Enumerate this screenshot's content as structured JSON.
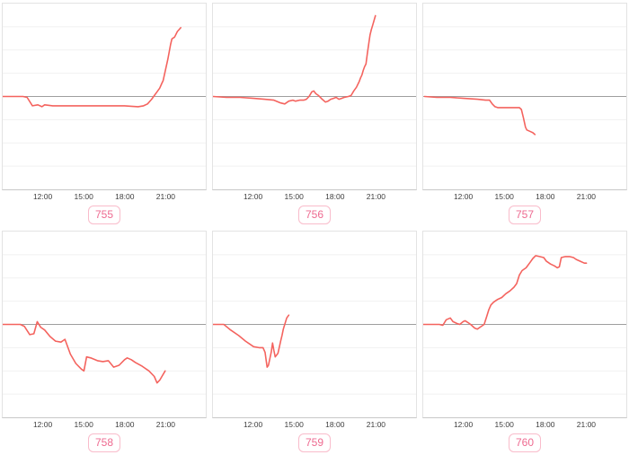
{
  "style": {
    "line_color": "#f4635e",
    "zero_line_color": "#9e9e9e",
    "grid_color": "#f1f1f1",
    "panel_border_color": "#e3e3e3",
    "axis_line_color": "#c8c8c8",
    "tick_label_color": "#3d3d3d",
    "badge_text_color": "#ee6a90",
    "badge_border_color": "#f9bccb"
  },
  "decor": {
    "clipped_title_fragment": "( , )"
  },
  "axis": {
    "grid_divisions": 8
  },
  "chart_data": [
    {
      "type": "line",
      "badge": "755",
      "x_tick_labels": [
        "12:00",
        "15:00",
        "18:00",
        "21:00"
      ],
      "x_tick_hours": [
        12,
        15,
        18,
        21
      ],
      "x_range_hours": [
        9,
        24
      ],
      "y_range": [
        -1,
        1
      ],
      "baseline": 0,
      "y_units": "relative change (y-axis unlabeled)",
      "points": [
        [
          9.0,
          0
        ],
        [
          10.5,
          0
        ],
        [
          10.8,
          -0.01
        ],
        [
          11.2,
          -0.1
        ],
        [
          11.6,
          -0.09
        ],
        [
          11.9,
          -0.11
        ],
        [
          12.1,
          -0.09
        ],
        [
          12.7,
          -0.1
        ],
        [
          14.0,
          -0.1
        ],
        [
          15.0,
          -0.1
        ],
        [
          16.0,
          -0.1
        ],
        [
          17.0,
          -0.1
        ],
        [
          18.0,
          -0.1
        ],
        [
          19.0,
          -0.11
        ],
        [
          19.4,
          -0.1
        ],
        [
          19.7,
          -0.08
        ],
        [
          20.0,
          -0.03
        ],
        [
          20.2,
          0.01
        ],
        [
          20.4,
          0.05
        ],
        [
          20.6,
          0.09
        ],
        [
          20.75,
          0.14
        ],
        [
          20.85,
          0.17
        ],
        [
          21.0,
          0.27
        ],
        [
          21.2,
          0.4
        ],
        [
          21.4,
          0.56
        ],
        [
          21.5,
          0.62
        ],
        [
          21.7,
          0.64
        ],
        [
          21.9,
          0.7
        ],
        [
          22.15,
          0.74
        ]
      ]
    },
    {
      "type": "line",
      "badge": "756",
      "x_tick_labels": [
        "12:00",
        "15:00",
        "18:00",
        "21:00"
      ],
      "x_tick_hours": [
        12,
        15,
        18,
        21
      ],
      "x_range_hours": [
        9,
        24
      ],
      "y_range": [
        -1,
        1
      ],
      "baseline": 0,
      "y_units": "relative change (y-axis unlabeled)",
      "points": [
        [
          9.0,
          0
        ],
        [
          10.0,
          -0.01
        ],
        [
          11.0,
          -0.01
        ],
        [
          12.0,
          -0.02
        ],
        [
          12.8,
          -0.03
        ],
        [
          13.5,
          -0.04
        ],
        [
          14.0,
          -0.07
        ],
        [
          14.3,
          -0.08
        ],
        [
          14.6,
          -0.05
        ],
        [
          14.9,
          -0.04
        ],
        [
          15.1,
          -0.05
        ],
        [
          15.4,
          -0.04
        ],
        [
          15.7,
          -0.04
        ],
        [
          15.9,
          -0.03
        ],
        [
          16.1,
          0
        ],
        [
          16.3,
          0.05
        ],
        [
          16.45,
          0.06
        ],
        [
          16.6,
          0.03
        ],
        [
          16.8,
          0.01
        ],
        [
          17.0,
          -0.02
        ],
        [
          17.3,
          -0.06
        ],
        [
          17.5,
          -0.05
        ],
        [
          17.7,
          -0.03
        ],
        [
          17.9,
          -0.02
        ],
        [
          18.1,
          -0.01
        ],
        [
          18.3,
          -0.03
        ],
        [
          18.5,
          -0.02
        ],
        [
          18.7,
          -0.01
        ],
        [
          19.0,
          0
        ],
        [
          19.2,
          0.01
        ],
        [
          19.4,
          0.06
        ],
        [
          19.6,
          0.1
        ],
        [
          19.8,
          0.16
        ],
        [
          19.9,
          0.2
        ],
        [
          20.0,
          0.23
        ],
        [
          20.1,
          0.28
        ],
        [
          20.2,
          0.32
        ],
        [
          20.3,
          0.35
        ],
        [
          20.4,
          0.46
        ],
        [
          20.5,
          0.56
        ],
        [
          20.6,
          0.66
        ],
        [
          20.7,
          0.72
        ],
        [
          20.8,
          0.77
        ],
        [
          20.9,
          0.82
        ],
        [
          21.0,
          0.87
        ]
      ]
    },
    {
      "type": "line",
      "badge": "757",
      "x_tick_labels": [
        "12:00",
        "15:00",
        "18:00",
        "21:00"
      ],
      "x_tick_hours": [
        12,
        15,
        18,
        21
      ],
      "x_range_hours": [
        9,
        24
      ],
      "y_range": [
        -1,
        1
      ],
      "baseline": 0,
      "y_units": "relative change (y-axis unlabeled)",
      "points": [
        [
          9.1,
          0
        ],
        [
          10.0,
          -0.01
        ],
        [
          11.0,
          -0.01
        ],
        [
          12.0,
          -0.02
        ],
        [
          13.0,
          -0.03
        ],
        [
          13.6,
          -0.04
        ],
        [
          13.9,
          -0.04
        ],
        [
          14.1,
          -0.08
        ],
        [
          14.3,
          -0.11
        ],
        [
          14.5,
          -0.12
        ],
        [
          15.0,
          -0.12
        ],
        [
          15.5,
          -0.12
        ],
        [
          15.9,
          -0.12
        ],
        [
          16.1,
          -0.12
        ],
        [
          16.25,
          -0.14
        ],
        [
          16.4,
          -0.23
        ],
        [
          16.55,
          -0.33
        ],
        [
          16.65,
          -0.36
        ],
        [
          16.8,
          -0.37
        ],
        [
          16.95,
          -0.38
        ],
        [
          17.1,
          -0.39
        ],
        [
          17.25,
          -0.41
        ]
      ]
    },
    {
      "type": "line",
      "badge": "758",
      "x_tick_labels": [
        "12:00",
        "15:00",
        "18:00",
        "21:00"
      ],
      "x_tick_hours": [
        12,
        15,
        18,
        21
      ],
      "x_range_hours": [
        9,
        24
      ],
      "y_range": [
        -1,
        1
      ],
      "baseline": 0,
      "y_units": "relative change (y-axis unlabeled)",
      "points": [
        [
          9.0,
          0
        ],
        [
          10.3,
          0
        ],
        [
          10.6,
          -0.02
        ],
        [
          11.0,
          -0.11
        ],
        [
          11.3,
          -0.1
        ],
        [
          11.55,
          0.03
        ],
        [
          11.8,
          -0.03
        ],
        [
          12.1,
          -0.06
        ],
        [
          12.5,
          -0.13
        ],
        [
          12.9,
          -0.18
        ],
        [
          13.3,
          -0.19
        ],
        [
          13.6,
          -0.16
        ],
        [
          14.0,
          -0.32
        ],
        [
          14.4,
          -0.42
        ],
        [
          14.8,
          -0.48
        ],
        [
          15.0,
          -0.5
        ],
        [
          15.2,
          -0.35
        ],
        [
          15.5,
          -0.36
        ],
        [
          16.0,
          -0.39
        ],
        [
          16.4,
          -0.4
        ],
        [
          16.8,
          -0.39
        ],
        [
          17.2,
          -0.46
        ],
        [
          17.6,
          -0.44
        ],
        [
          18.0,
          -0.38
        ],
        [
          18.2,
          -0.36
        ],
        [
          18.5,
          -0.38
        ],
        [
          18.8,
          -0.41
        ],
        [
          19.3,
          -0.45
        ],
        [
          19.8,
          -0.5
        ],
        [
          20.2,
          -0.56
        ],
        [
          20.4,
          -0.63
        ],
        [
          20.6,
          -0.6
        ],
        [
          21.0,
          -0.5
        ]
      ]
    },
    {
      "type": "line",
      "badge": "759",
      "x_tick_labels": [
        "12:00",
        "15:00",
        "18:00",
        "21:00"
      ],
      "x_tick_hours": [
        12,
        15,
        18,
        21
      ],
      "x_range_hours": [
        9,
        24
      ],
      "y_range": [
        -1,
        1
      ],
      "baseline": 0,
      "y_units": "relative change (y-axis unlabeled)",
      "points": [
        [
          9.0,
          0
        ],
        [
          9.8,
          0
        ],
        [
          10.3,
          -0.06
        ],
        [
          10.9,
          -0.12
        ],
        [
          11.4,
          -0.18
        ],
        [
          12.0,
          -0.24
        ],
        [
          12.4,
          -0.25
        ],
        [
          12.7,
          -0.25
        ],
        [
          12.85,
          -0.3
        ],
        [
          13.0,
          -0.46
        ],
        [
          13.1,
          -0.44
        ],
        [
          13.3,
          -0.3
        ],
        [
          13.4,
          -0.2
        ],
        [
          13.5,
          -0.28
        ],
        [
          13.6,
          -0.35
        ],
        [
          13.8,
          -0.31
        ],
        [
          14.0,
          -0.18
        ],
        [
          14.1,
          -0.12
        ],
        [
          14.2,
          -0.05
        ],
        [
          14.3,
          0
        ],
        [
          14.45,
          0.07
        ],
        [
          14.6,
          0.1
        ]
      ]
    },
    {
      "type": "line",
      "badge": "760",
      "x_tick_labels": [
        "12:00",
        "15:00",
        "18:00",
        "21:00"
      ],
      "x_tick_hours": [
        12,
        15,
        18,
        21
      ],
      "x_range_hours": [
        9,
        24
      ],
      "y_range": [
        -1,
        1
      ],
      "baseline": 0,
      "y_units": "relative change (y-axis unlabeled)",
      "points": [
        [
          9.0,
          0
        ],
        [
          10.2,
          0
        ],
        [
          10.45,
          -0.01
        ],
        [
          10.7,
          0.05
        ],
        [
          11.0,
          0.07
        ],
        [
          11.2,
          0.03
        ],
        [
          11.5,
          0.01
        ],
        [
          11.7,
          0
        ],
        [
          11.95,
          0.03
        ],
        [
          12.1,
          0.04
        ],
        [
          12.3,
          0.02
        ],
        [
          12.5,
          0
        ],
        [
          12.8,
          -0.04
        ],
        [
          13.0,
          -0.05
        ],
        [
          13.2,
          -0.03
        ],
        [
          13.5,
          0
        ],
        [
          13.7,
          0.09
        ],
        [
          13.85,
          0.16
        ],
        [
          14.0,
          0.21
        ],
        [
          14.2,
          0.24
        ],
        [
          14.5,
          0.27
        ],
        [
          14.8,
          0.29
        ],
        [
          15.1,
          0.33
        ],
        [
          15.4,
          0.36
        ],
        [
          15.7,
          0.4
        ],
        [
          15.9,
          0.44
        ],
        [
          16.1,
          0.53
        ],
        [
          16.3,
          0.58
        ],
        [
          16.6,
          0.61
        ],
        [
          16.9,
          0.67
        ],
        [
          17.1,
          0.71
        ],
        [
          17.3,
          0.74
        ],
        [
          17.6,
          0.73
        ],
        [
          17.9,
          0.72
        ],
        [
          18.1,
          0.68
        ],
        [
          18.4,
          0.65
        ],
        [
          18.7,
          0.63
        ],
        [
          18.9,
          0.61
        ],
        [
          19.05,
          0.62
        ],
        [
          19.2,
          0.72
        ],
        [
          19.5,
          0.73
        ],
        [
          19.8,
          0.73
        ],
        [
          20.1,
          0.72
        ],
        [
          20.3,
          0.7
        ],
        [
          20.6,
          0.68
        ],
        [
          20.9,
          0.66
        ],
        [
          21.05,
          0.66
        ]
      ]
    }
  ]
}
